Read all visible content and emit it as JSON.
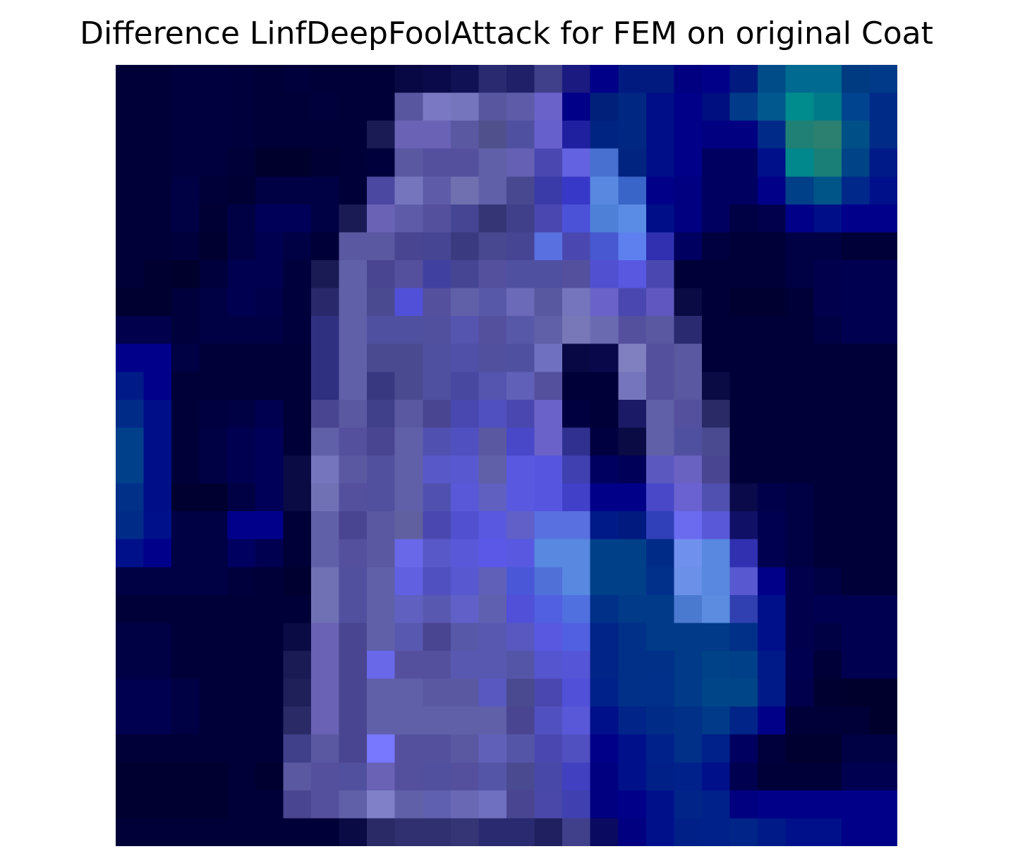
{
  "chart_data": {
    "type": "heatmap",
    "title": "Difference LinfDeepFoolAttack for FEM on original Coat",
    "xlabel": "",
    "ylabel": "",
    "axes_visible": false,
    "grid": false,
    "legend": "none",
    "colorbar": "none",
    "rows": 28,
    "cols": 28,
    "pixels": [
      [
        "#000038",
        "#000038",
        "#00003f",
        "#00003f",
        "#00003c",
        "#000038",
        "#00003c",
        "#000038",
        "#000038",
        "#000038",
        "#080844",
        "#0a0a4a",
        "#101055",
        "#2a2a70",
        "#202068",
        "#40408a",
        "#1a1a80",
        "#000088",
        "#001a80",
        "#001a80",
        "#000080",
        "#000088",
        "#001a80",
        "#004c88",
        "#006a90",
        "#006a90",
        "#003a80",
        "#003a88"
      ],
      [
        "#000038",
        "#000038",
        "#00003f",
        "#00003f",
        "#00003c",
        "#000038",
        "#000038",
        "#00003c",
        "#000038",
        "#000038",
        "#58569e",
        "#7a78c2",
        "#7575bd",
        "#58569e",
        "#5e5ca8",
        "#6a62c8",
        "#000088",
        "#00207a",
        "#002882",
        "#000f88",
        "#000088",
        "#000f80",
        "#003a88",
        "#00588e",
        "#008c8c",
        "#007a88",
        "#00448f",
        "#002c88"
      ],
      [
        "#000038",
        "#000038",
        "#00003f",
        "#00003f",
        "#00003c",
        "#000038",
        "#000038",
        "#000038",
        "#000038",
        "#1a1a55",
        "#6a62b5",
        "#6a62b5",
        "#5b58a2",
        "#50508c",
        "#5050a0",
        "#6660cd",
        "#1f20a0",
        "#002482",
        "#002882",
        "#000f88",
        "#000088",
        "#000080",
        "#000080",
        "#002a88",
        "#208075",
        "#2b8070",
        "#005088",
        "#002c88"
      ],
      [
        "#000038",
        "#000038",
        "#00003f",
        "#00003f",
        "#000038",
        "#00002c",
        "#00002c",
        "#000034",
        "#000038",
        "#00003c",
        "#5b58a2",
        "#55509e",
        "#55509e",
        "#6060a8",
        "#6660b5",
        "#4a48b0",
        "#6362e0",
        "#4870d0",
        "#002480",
        "#000f88",
        "#000088",
        "#000060",
        "#000060",
        "#00108a",
        "#00888c",
        "#1a8077",
        "#004488",
        "#001a88"
      ],
      [
        "#000038",
        "#000038",
        "#000044",
        "#000038",
        "#000034",
        "#000044",
        "#000044",
        "#000044",
        "#000038",
        "#4a48a0",
        "#7575bd",
        "#5e5ca8",
        "#7070b0",
        "#6060a8",
        "#484890",
        "#3a3aa8",
        "#3838c8",
        "#5888e0",
        "#3a65c8",
        "#000088",
        "#000080",
        "#000060",
        "#000060",
        "#000088",
        "#004088",
        "#005588",
        "#00288a",
        "#00108a"
      ],
      [
        "#000038",
        "#000038",
        "#000044",
        "#000034",
        "#000044",
        "#000058",
        "#000058",
        "#000044",
        "#1a1a55",
        "#6a62b5",
        "#5e5ca8",
        "#55509e",
        "#454594",
        "#353575",
        "#40408a",
        "#4a48b0",
        "#4c52d8",
        "#4e80d8",
        "#5b8ce5",
        "#000f88",
        "#000080",
        "#000060",
        "#000044",
        "#00004c",
        "#000088",
        "#000f88",
        "#00008a",
        "#00008a"
      ],
      [
        "#000038",
        "#000038",
        "#00003c",
        "#000030",
        "#000044",
        "#000050",
        "#000044",
        "#000038",
        "#5a58a0",
        "#5b58a2",
        "#4a4590",
        "#454594",
        "#3a3a80",
        "#484890",
        "#454594",
        "#5870e0",
        "#4a48b0",
        "#4858d0",
        "#5e80ee",
        "#3030b0",
        "#000060",
        "#000040",
        "#000038",
        "#000038",
        "#000044",
        "#000044",
        "#000038",
        "#000038"
      ],
      [
        "#000038",
        "#000030",
        "#00002c",
        "#00003c",
        "#000050",
        "#000050",
        "#00003c",
        "#1a1a55",
        "#6060a8",
        "#4a4590",
        "#55509e",
        "#4040a0",
        "#454594",
        "#55509e",
        "#5050a0",
        "#5050a0",
        "#55509e",
        "#5050d0",
        "#5858e0",
        "#4a48b0",
        "#000038",
        "#000038",
        "#000038",
        "#000038",
        "#000044",
        "#00004c",
        "#000050",
        "#000050"
      ],
      [
        "#000030",
        "#000030",
        "#00003c",
        "#000044",
        "#000050",
        "#00004a",
        "#00003c",
        "#28286a",
        "#6060a8",
        "#4a4a90",
        "#5050d8",
        "#55509e",
        "#6060a8",
        "#5858a8",
        "#6a6ab8",
        "#5858a0",
        "#7575bd",
        "#6a62c8",
        "#4a48b0",
        "#6058c0",
        "#0a0a44",
        "#000038",
        "#000030",
        "#000030",
        "#000038",
        "#00004c",
        "#000050",
        "#000050"
      ],
      [
        "#00004c",
        "#00004c",
        "#00003c",
        "#000044",
        "#000044",
        "#000044",
        "#00003c",
        "#303080",
        "#6060a8",
        "#5050a0",
        "#5050a0",
        "#50509e",
        "#5555b0",
        "#55509e",
        "#5858a8",
        "#6060a8",
        "#7878b8",
        "#6a6ab0",
        "#55509e",
        "#5a58a0",
        "#2a2a70",
        "#000038",
        "#000038",
        "#000038",
        "#000038",
        "#000044",
        "#000050",
        "#000050"
      ],
      [
        "#00008a",
        "#00008a",
        "#000044",
        "#000038",
        "#000038",
        "#000038",
        "#000038",
        "#303080",
        "#6060a8",
        "#4a4a90",
        "#4a4a90",
        "#5050a0",
        "#5050a8",
        "#50509e",
        "#5050a0",
        "#7070c0",
        "#080844",
        "#08084a",
        "#8080c0",
        "#55509e",
        "#5a58a0",
        "#000038",
        "#000038",
        "#000038",
        "#000038",
        "#000038",
        "#000038",
        "#000038"
      ],
      [
        "#001a88",
        "#00008a",
        "#000038",
        "#000038",
        "#000038",
        "#000038",
        "#000038",
        "#303080",
        "#6060a8",
        "#383880",
        "#4a4a90",
        "#5050a0",
        "#4848a0",
        "#5555b0",
        "#6060b8",
        "#55509e",
        "#000038",
        "#000038",
        "#7575bd",
        "#55509e",
        "#5a58a0",
        "#0a0a44",
        "#000038",
        "#000038",
        "#000038",
        "#000038",
        "#000038",
        "#000038"
      ],
      [
        "#002c88",
        "#000f88",
        "#000038",
        "#000040",
        "#000044",
        "#000050",
        "#000038",
        "#4a4590",
        "#5b58a2",
        "#40408a",
        "#5b58a2",
        "#4a4590",
        "#4848b0",
        "#5050c0",
        "#4a48b0",
        "#6a62c8",
        "#000040",
        "#000038",
        "#1a1a66",
        "#6060a8",
        "#55509e",
        "#2a2a66",
        "#000038",
        "#000038",
        "#000038",
        "#000038",
        "#000038",
        "#000038"
      ],
      [
        "#00408a",
        "#000f88",
        "#000038",
        "#000044",
        "#000050",
        "#000058",
        "#000038",
        "#6060a8",
        "#55509e",
        "#4a4590",
        "#6060a8",
        "#5050b0",
        "#5050c0",
        "#5b58a2",
        "#4848c8",
        "#6a62c8",
        "#303090",
        "#000040",
        "#0a0a44",
        "#6060a8",
        "#5050a0",
        "#4a4a90",
        "#000038",
        "#000038",
        "#000038",
        "#000038",
        "#000038",
        "#000038"
      ],
      [
        "#00408a",
        "#000f88",
        "#000038",
        "#000044",
        "#000050",
        "#000058",
        "#0a0a44",
        "#7575bd",
        "#5b58a2",
        "#50509e",
        "#6060a8",
        "#5858c8",
        "#5858d0",
        "#6060a8",
        "#5858e0",
        "#5555e0",
        "#4040b0",
        "#000060",
        "#000058",
        "#5b58c0",
        "#6a62c0",
        "#4a4590",
        "#000038",
        "#000038",
        "#000038",
        "#000038",
        "#000038",
        "#000038"
      ],
      [
        "#003088",
        "#000f88",
        "#000030",
        "#000030",
        "#000044",
        "#000058",
        "#0a0a44",
        "#7070b5",
        "#55509e",
        "#50509e",
        "#6060a8",
        "#5050b0",
        "#5858d8",
        "#6060c0",
        "#5858e0",
        "#5555e0",
        "#4040c8",
        "#000088",
        "#000088",
        "#4848c8",
        "#6a62d0",
        "#5050b0",
        "#0a0a4a",
        "#00004a",
        "#000044",
        "#000038",
        "#000038",
        "#000038"
      ],
      [
        "#002c88",
        "#00108a",
        "#000044",
        "#000044",
        "#00008a",
        "#00008a",
        "#000038",
        "#6060a8",
        "#4a4590",
        "#5b58a2",
        "#6060a0",
        "#4a48b0",
        "#5050d0",
        "#5858e0",
        "#6060c8",
        "#5870e0",
        "#5870e0",
        "#001a88",
        "#001a80",
        "#3040b8",
        "#6b6bf0",
        "#5858d8",
        "#101066",
        "#000050",
        "#000044",
        "#000038",
        "#000038",
        "#000038"
      ],
      [
        "#00108a",
        "#00008a",
        "#000044",
        "#000044",
        "#000060",
        "#000050",
        "#000038",
        "#6060a8",
        "#55509e",
        "#5b58a2",
        "#6868e8",
        "#5858c8",
        "#5858d8",
        "#5b58e8",
        "#5858e0",
        "#5888e0",
        "#5888e0",
        "#004088",
        "#004088",
        "#002c88",
        "#7090ee",
        "#5888e0",
        "#3030b0",
        "#000050",
        "#000044",
        "#000038",
        "#000038",
        "#000038"
      ],
      [
        "#000044",
        "#000044",
        "#000044",
        "#000044",
        "#00003c",
        "#000038",
        "#000030",
        "#7070b5",
        "#50509e",
        "#6060a8",
        "#6060e0",
        "#5050c0",
        "#5858d0",
        "#6060b8",
        "#4a58d8",
        "#5070d8",
        "#5888e0",
        "#004088",
        "#004088",
        "#00308a",
        "#6a90e8",
        "#5888e0",
        "#5858d0",
        "#000088",
        "#00004c",
        "#000044",
        "#000038",
        "#000038"
      ],
      [
        "#000038",
        "#000038",
        "#000038",
        "#000038",
        "#000038",
        "#000038",
        "#000038",
        "#7070b5",
        "#50509e",
        "#6060a8",
        "#6060c0",
        "#5858b0",
        "#6060c8",
        "#6060b0",
        "#5050d8",
        "#5060e0",
        "#5070e0",
        "#003088",
        "#003a88",
        "#003a88",
        "#4a7ad0",
        "#5b8ce0",
        "#3040b0",
        "#00108a",
        "#00004c",
        "#000050",
        "#000050",
        "#000050"
      ],
      [
        "#000044",
        "#000044",
        "#000038",
        "#000038",
        "#000038",
        "#000038",
        "#0a0a44",
        "#6a62b5",
        "#4a4590",
        "#6060a8",
        "#5858b0",
        "#4a4590",
        "#5858a8",
        "#5858b0",
        "#5858c0",
        "#5858e0",
        "#5060e0",
        "#002488",
        "#003088",
        "#003a88",
        "#003a88",
        "#003a88",
        "#003088",
        "#00108a",
        "#00004c",
        "#000044",
        "#000050",
        "#000050"
      ],
      [
        "#000044",
        "#000044",
        "#000038",
        "#000038",
        "#000038",
        "#000038",
        "#1a1a55",
        "#6a62b5",
        "#4a4590",
        "#6868e8",
        "#55509e",
        "#55509e",
        "#5858b0",
        "#5858b0",
        "#5555a8",
        "#5555d0",
        "#5555d8",
        "#002488",
        "#003088",
        "#003088",
        "#003a88",
        "#004288",
        "#004088",
        "#001a88",
        "#000050",
        "#000038",
        "#000050",
        "#000050"
      ],
      [
        "#000050",
        "#000050",
        "#000044",
        "#000038",
        "#000038",
        "#000038",
        "#1f1f5a",
        "#6a62b5",
        "#4a4590",
        "#6060a8",
        "#6060a8",
        "#5a58a0",
        "#5a58a0",
        "#5858c0",
        "#4a4a90",
        "#4a48b0",
        "#5050d8",
        "#00208a",
        "#003088",
        "#00308a",
        "#003a88",
        "#004588",
        "#004588",
        "#001a88",
        "#00004c",
        "#000030",
        "#00002c",
        "#00002c"
      ],
      [
        "#000050",
        "#000050",
        "#000044",
        "#000038",
        "#000038",
        "#000038",
        "#2a2a66",
        "#6a62b5",
        "#4a4590",
        "#6060a8",
        "#6060a8",
        "#6060a8",
        "#6060a8",
        "#6060a8",
        "#4a4590",
        "#5050c0",
        "#5858d8",
        "#00108a",
        "#002488",
        "#002c88",
        "#003088",
        "#003a88",
        "#002488",
        "#000088",
        "#000038",
        "#000038",
        "#000038",
        "#00002c"
      ],
      [
        "#000038",
        "#000038",
        "#000038",
        "#000038",
        "#000038",
        "#000038",
        "#40408a",
        "#5b58a2",
        "#4a4590",
        "#7878ff",
        "#55509e",
        "#55509e",
        "#5b58a2",
        "#6060b8",
        "#5555a8",
        "#4a48b0",
        "#5050c0",
        "#000088",
        "#00108a",
        "#00208a",
        "#003088",
        "#00208a",
        "#000060",
        "#00003c",
        "#000030",
        "#000030",
        "#000044",
        "#000044"
      ],
      [
        "#000030",
        "#000030",
        "#000030",
        "#000030",
        "#000038",
        "#000030",
        "#5a58a0",
        "#55509e",
        "#50509e",
        "#6a62b5",
        "#55509e",
        "#50509e",
        "#55509e",
        "#5555a8",
        "#4a4a90",
        "#4848a8",
        "#4040c0",
        "#000080",
        "#00108a",
        "#002088",
        "#00208a",
        "#00108a",
        "#000050",
        "#000038",
        "#000038",
        "#000038",
        "#000050",
        "#000050"
      ],
      [
        "#000030",
        "#000030",
        "#000030",
        "#000030",
        "#000038",
        "#000038",
        "#4a4590",
        "#55509e",
        "#6060a8",
        "#8080c8",
        "#6060a8",
        "#6060b0",
        "#6868b5",
        "#7070c0",
        "#4a4590",
        "#4a48a8",
        "#4040b0",
        "#000080",
        "#000088",
        "#00108a",
        "#002488",
        "#00208a",
        "#000080",
        "#000088",
        "#000088",
        "#000088",
        "#000088",
        "#000088"
      ],
      [
        "#000038",
        "#000038",
        "#000038",
        "#000038",
        "#000038",
        "#000038",
        "#000038",
        "#000038",
        "#0a0a44",
        "#2a2a66",
        "#303070",
        "#303070",
        "#353575",
        "#2a2a70",
        "#2a2a70",
        "#202060",
        "#40408a",
        "#0a0a60",
        "#000080",
        "#00108a",
        "#002088",
        "#00208a",
        "#002488",
        "#001a88",
        "#00108a",
        "#00108a",
        "#000088",
        "#000088"
      ]
    ]
  }
}
